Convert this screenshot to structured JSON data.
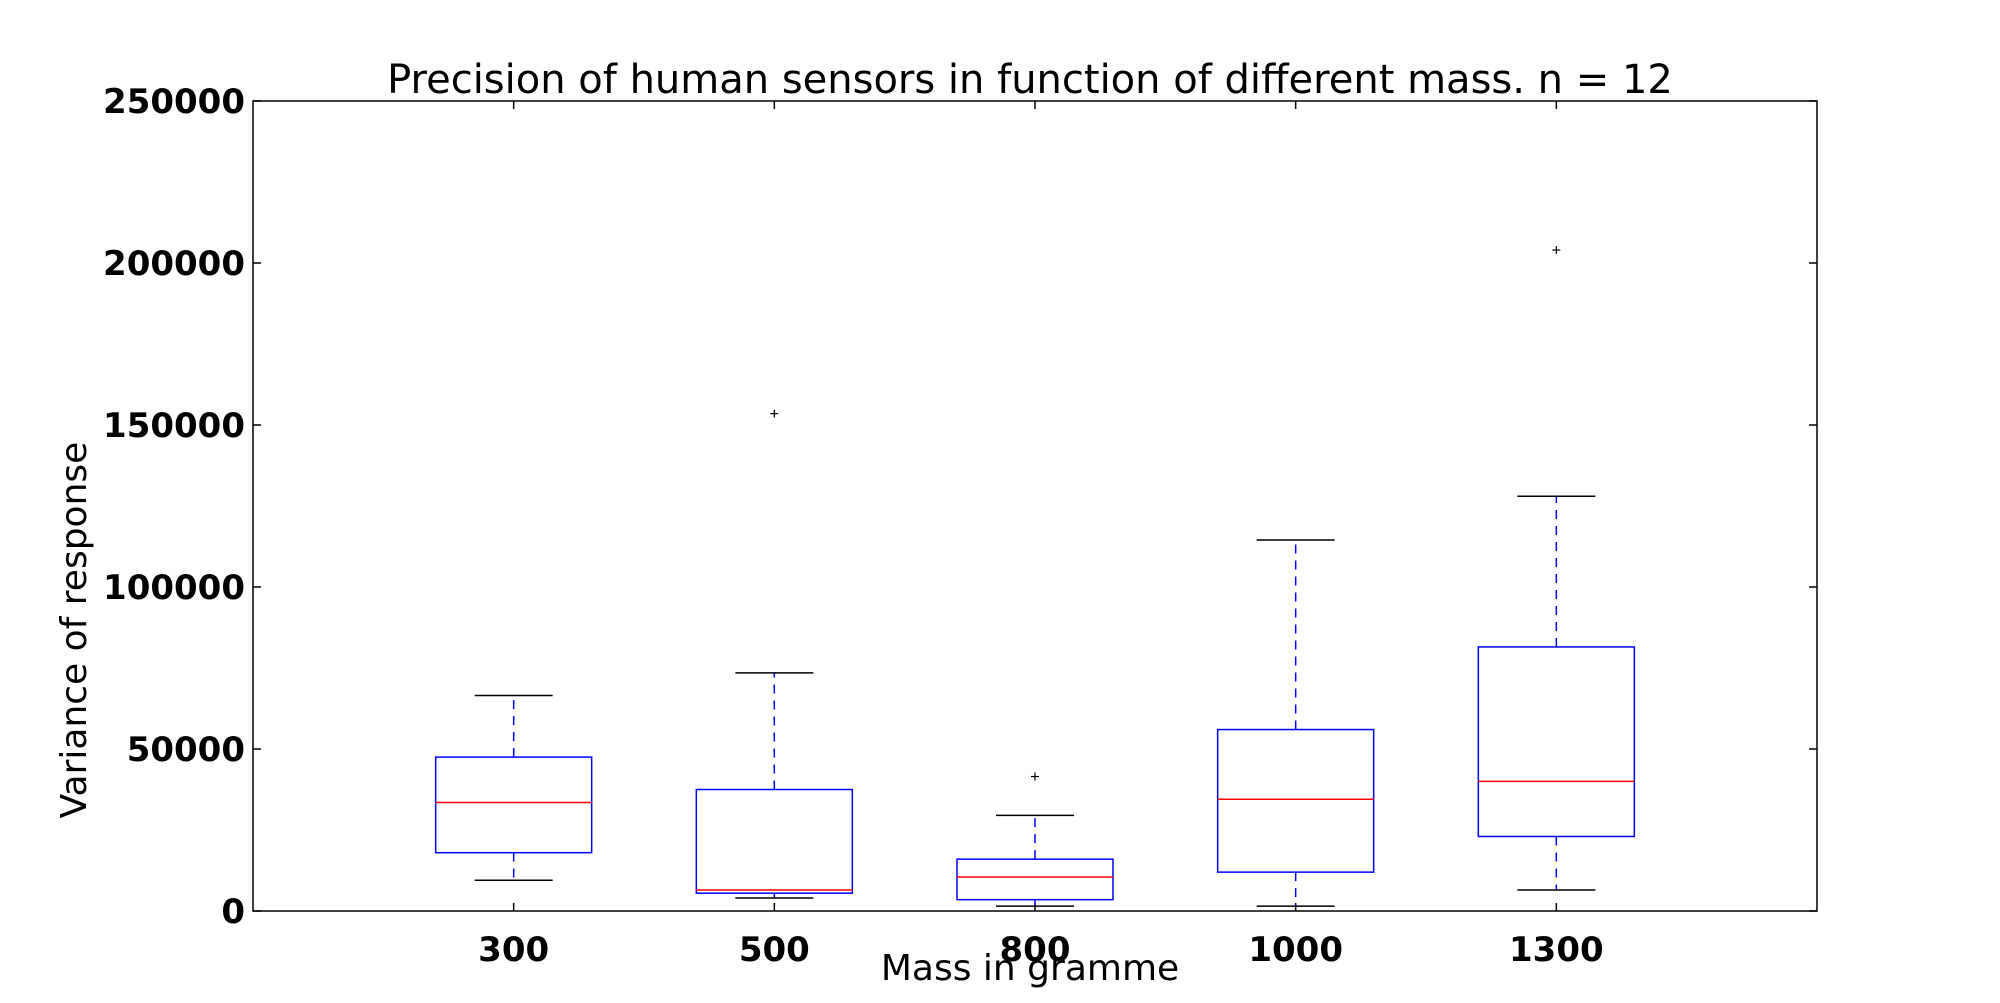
{
  "chart_data": {
    "type": "box",
    "title": "Precision of human sensors in function of different mass. n = 12",
    "xlabel": "Mass in gramme",
    "ylabel": "Variance of response",
    "categories": [
      "300",
      "500",
      "800",
      "1000",
      "1300"
    ],
    "ylim": [
      0,
      250000
    ],
    "yticks": [
      0,
      50000,
      100000,
      150000,
      200000,
      250000
    ],
    "ytick_labels": [
      "0",
      "50000",
      "100000",
      "150000",
      "200000",
      "250000"
    ],
    "grid": false,
    "boxes": [
      {
        "category": "300",
        "whisker_low": 9500,
        "q1": 18000,
        "median": 33500,
        "q3": 47500,
        "whisker_high": 66500,
        "outliers": []
      },
      {
        "category": "500",
        "whisker_low": 4000,
        "q1": 5500,
        "median": 6500,
        "q3": 37500,
        "whisker_high": 73500,
        "outliers": [
          153500
        ]
      },
      {
        "category": "800",
        "whisker_low": 1500,
        "q1": 3500,
        "median": 10500,
        "q3": 16000,
        "whisker_high": 29500,
        "outliers": [
          41500
        ]
      },
      {
        "category": "1000",
        "whisker_low": 1500,
        "q1": 12000,
        "median": 34500,
        "q3": 56000,
        "whisker_high": 114500,
        "outliers": []
      },
      {
        "category": "1300",
        "whisker_low": 6500,
        "q1": 23000,
        "median": 40000,
        "q3": 81500,
        "whisker_high": 128000,
        "outliers": [
          204000
        ]
      }
    ],
    "colors": {
      "box": "#0000ff",
      "median": "#ff0000",
      "whisker": "#0000ff",
      "cap": "#000000",
      "outlier": "#000000",
      "axes": "#000000"
    }
  }
}
